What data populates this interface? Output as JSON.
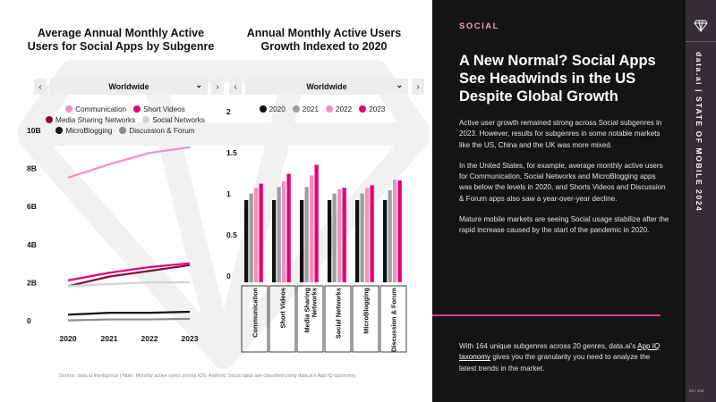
{
  "left_chart": {
    "title": "Average Annual Monthly Active Users for Social Apps by Subgenre",
    "dropdown": {
      "value": "Worldwide",
      "prev": "‹",
      "next": "›"
    },
    "legend": [
      {
        "label": "Communication",
        "color": "#f48fc0"
      },
      {
        "label": "Short Videos",
        "color": "#e6006e"
      },
      {
        "label": "Media Sharing Networks",
        "color": "#8a0a3c"
      },
      {
        "label": "Social Networks",
        "color": "#d4d4d4"
      },
      {
        "label": "MicroBlogging",
        "color": "#111111"
      },
      {
        "label": "Discussion & Forum",
        "color": "#8c8c8c"
      }
    ]
  },
  "right_chart": {
    "title": "Annual Monthly Active Users Growth Indexed to 2020",
    "dropdown": {
      "value": "Worldwide",
      "prev": "‹",
      "next": "›"
    },
    "legend": [
      {
        "label": "2020",
        "color": "#111111"
      },
      {
        "label": "2021",
        "color": "#9e9e9e"
      },
      {
        "label": "2022",
        "color": "#f48fc0"
      },
      {
        "label": "2023",
        "color": "#e6006e"
      }
    ]
  },
  "chart_data": [
    {
      "type": "line",
      "title": "Average Annual Monthly Active Users for Social Apps by Subgenre",
      "x": [
        "2020",
        "2021",
        "2022",
        "2023"
      ],
      "y_ticks": [
        "0",
        "2B",
        "4B",
        "6B",
        "8B",
        "10B"
      ],
      "ylim": [
        0,
        10
      ],
      "series": [
        {
          "name": "Communication",
          "color": "#f48fc0",
          "values": [
            7.8,
            8.5,
            9.1,
            9.4
          ]
        },
        {
          "name": "Short Videos",
          "color": "#e6006e",
          "values": [
            2.4,
            2.8,
            3.1,
            3.3
          ]
        },
        {
          "name": "Media Sharing Networks",
          "color": "#8a0a3c",
          "values": [
            2.1,
            2.6,
            2.9,
            3.2
          ]
        },
        {
          "name": "Social Networks",
          "color": "#d4d4d4",
          "values": [
            2.1,
            2.2,
            2.3,
            2.3
          ]
        },
        {
          "name": "MicroBlogging",
          "color": "#111111",
          "values": [
            0.6,
            0.7,
            0.7,
            0.75
          ]
        },
        {
          "name": "Discussion & Forum",
          "color": "#8c8c8c",
          "values": [
            0.3,
            0.35,
            0.35,
            0.38
          ]
        }
      ]
    },
    {
      "type": "bar",
      "title": "Annual Monthly Active Users Growth Indexed to 2020",
      "categories": [
        "Communication",
        "Short Videos",
        "Media Sharing Networks",
        "Social Networks",
        "MicroBlogging",
        "Discussion & Forum"
      ],
      "category_labels": [
        [
          "Communication"
        ],
        [
          "Short Videos"
        ],
        [
          "Media Sharing",
          "Networks"
        ],
        [
          "Social Networks"
        ],
        [
          "MicroBlogging"
        ],
        [
          "Discussion & Forum"
        ]
      ],
      "y_ticks": [
        "0",
        "0.5",
        "1",
        "1.5",
        "2"
      ],
      "ylim": [
        0,
        2
      ],
      "series": [
        {
          "name": "2020",
          "color": "#111111",
          "values": [
            1.0,
            1.0,
            1.0,
            1.0,
            1.0,
            1.0
          ]
        },
        {
          "name": "2021",
          "color": "#9e9e9e",
          "values": [
            1.08,
            1.16,
            1.16,
            1.08,
            1.08,
            1.12
          ]
        },
        {
          "name": "2022",
          "color": "#f48fc0",
          "values": [
            1.15,
            1.23,
            1.3,
            1.13,
            1.15,
            1.25
          ]
        },
        {
          "name": "2023",
          "color": "#e6006e",
          "values": [
            1.2,
            1.32,
            1.43,
            1.15,
            1.18,
            1.24
          ]
        }
      ]
    }
  ],
  "source": "Source: data.ai Intelligence | Note: Monthly active users across iOS, Android. Social apps are classified using data.ai's App IQ taxonomy.",
  "panel": {
    "tag": "SOCIAL",
    "headline": "A New Normal? Social Apps See Headwinds in the US Despite Global Growth",
    "paragraphs": [
      "Active user growth remained strong across Social subgenres in 2023. However, results for subgenres in some notable markets like the US, China and the UK was more mixed.",
      "In the United States, for example, average monthly active users for Communication, Social Networks and MicroBlogging apps was below the levels in 2020, and Shorts Videos and Discussion & Forum apps also saw a year-over-year decline.",
      "Mature mobile markets are seeing Social usage stabilize after the rapid increase caused by the start of the pandemic in 2020."
    ],
    "cta_before": "With 164 unique subgenres across 20 genres, data.ai's ",
    "cta_link": "App IQ taxonomy",
    "cta_after": " gives you the granularity you need to analyze the latest trends in the market."
  },
  "sidebar": {
    "text": "data.ai | STATE OF MOBILE 2024",
    "page": "60 / 100"
  }
}
